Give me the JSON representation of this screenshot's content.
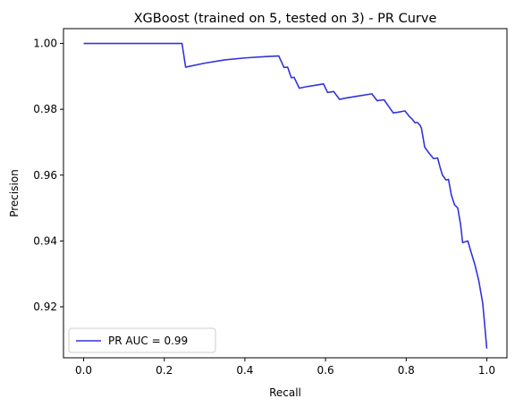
{
  "chart_data": {
    "type": "line",
    "title": "XGBoost (trained on 5, tested on 3) -  PR Curve",
    "xlabel": "Recall",
    "ylabel": "Precision",
    "xlim": [
      -0.05,
      1.05
    ],
    "ylim": [
      0.9045,
      1.0045
    ],
    "x_ticks": [
      0.0,
      0.2,
      0.4,
      0.6,
      0.8,
      1.0
    ],
    "x_tick_labels": [
      "0.0",
      "0.2",
      "0.4",
      "0.6",
      "0.8",
      "1.0"
    ],
    "y_ticks": [
      0.92,
      0.94,
      0.96,
      0.98,
      1.0
    ],
    "y_tick_labels": [
      "0.92",
      "0.94",
      "0.96",
      "0.98",
      "1.00"
    ],
    "grid": false,
    "legend_position": "lower-left",
    "series": [
      {
        "name": "PR AUC = 0.99",
        "color": "#3333dd",
        "x": [
          0.0,
          0.244,
          0.253,
          0.3,
          0.35,
          0.4,
          0.45,
          0.484,
          0.497,
          0.506,
          0.515,
          0.522,
          0.535,
          0.55,
          0.575,
          0.595,
          0.605,
          0.62,
          0.635,
          0.65,
          0.68,
          0.715,
          0.728,
          0.745,
          0.768,
          0.78,
          0.797,
          0.808,
          0.815,
          0.822,
          0.828,
          0.834,
          0.838,
          0.846,
          0.856,
          0.868,
          0.878,
          0.885,
          0.89,
          0.899,
          0.905,
          0.912,
          0.92,
          0.928,
          0.935,
          0.94,
          0.945,
          0.953,
          0.96,
          0.97,
          0.98,
          0.99,
          1.0
        ],
        "y": [
          1.0,
          1.0,
          0.9928,
          0.994,
          0.995,
          0.9956,
          0.996,
          0.9962,
          0.9927,
          0.9928,
          0.9896,
          0.9897,
          0.9864,
          0.9868,
          0.9873,
          0.9877,
          0.9851,
          0.9854,
          0.983,
          0.9834,
          0.984,
          0.9847,
          0.9826,
          0.9829,
          0.9789,
          0.9791,
          0.9795,
          0.9778,
          0.977,
          0.9759,
          0.976,
          0.9752,
          0.9742,
          0.9685,
          0.9668,
          0.965,
          0.9652,
          0.962,
          0.96,
          0.9585,
          0.9587,
          0.954,
          0.951,
          0.95,
          0.945,
          0.9395,
          0.9397,
          0.94,
          0.937,
          0.933,
          0.928,
          0.921,
          0.9073
        ]
      }
    ]
  },
  "legend": {
    "label": "PR AUC = 0.99"
  }
}
